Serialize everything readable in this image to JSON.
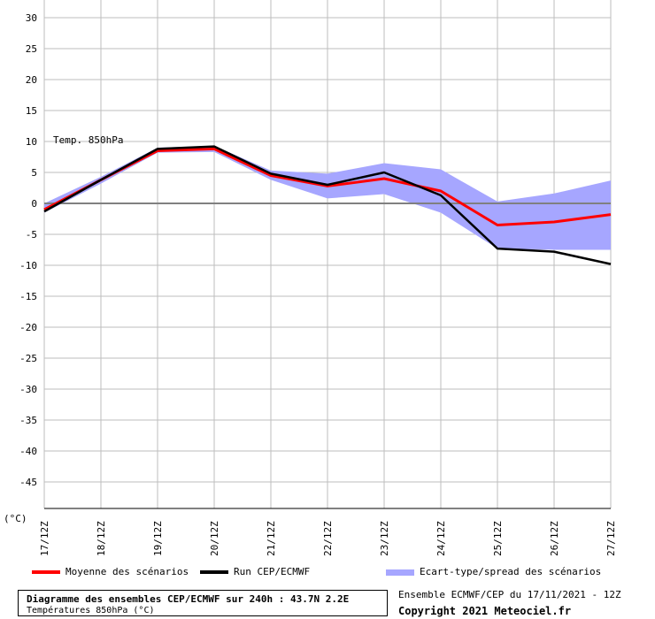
{
  "chart_data": {
    "type": "line",
    "annotation": "Temp. 850hPa",
    "unit_label": "(°C)",
    "ylim": [
      -50,
      30
    ],
    "yticks": [
      30,
      25,
      20,
      15,
      10,
      5,
      0,
      -5,
      -10,
      -15,
      -20,
      -25,
      -30,
      -35,
      -40,
      -45
    ],
    "x": [
      "17/12Z",
      "18/12Z",
      "19/12Z",
      "20/12Z",
      "21/12Z",
      "22/12Z",
      "23/12Z",
      "24/12Z",
      "25/12Z",
      "26/12Z",
      "27/12Z"
    ],
    "grid": true,
    "series": [
      {
        "name": "Moyenne des scénarios",
        "color": "#ff0000",
        "values": [
          -1.0,
          3.8,
          8.5,
          8.8,
          4.5,
          2.8,
          4.0,
          2.0,
          -3.5,
          -3.0,
          -1.8
        ]
      },
      {
        "name": "Run CEP/ECMWF",
        "color": "#000000",
        "values": [
          -1.3,
          3.8,
          8.8,
          9.2,
          4.8,
          3.0,
          5.0,
          1.3,
          -7.3,
          -7.8,
          -9.8
        ]
      }
    ],
    "spread": {
      "name": "Ecart-type/spread des scénarios",
      "color": "#a6a6ff",
      "upper": [
        0.0,
        4.3,
        9.0,
        9.3,
        5.3,
        4.8,
        6.5,
        5.5,
        0.3,
        1.6,
        3.7
      ],
      "lower": [
        -1.5,
        3.2,
        8.2,
        8.3,
        3.8,
        0.8,
        1.5,
        -1.5,
        -7.3,
        -7.5,
        -7.5
      ]
    }
  },
  "legend": {
    "mean_label": "Moyenne des scénarios",
    "run_label": "Run CEP/ECMWF",
    "spread_label": "Ecart-type/spread des scénarios"
  },
  "footer": {
    "title": "Diagramme des ensembles CEP/ECMWF sur 240h : 43.7N 2.2E",
    "subtitle": "Températures 850hPa (°C)",
    "run_info": "Ensemble ECMWF/CEP du 17/11/2021 - 12Z",
    "copyright": "Copyright 2021 Meteociel.fr"
  },
  "colors": {
    "mean": "#ff0000",
    "run": "#000000",
    "spread": "#a6a6ff",
    "grid": "#bdbdbd"
  }
}
